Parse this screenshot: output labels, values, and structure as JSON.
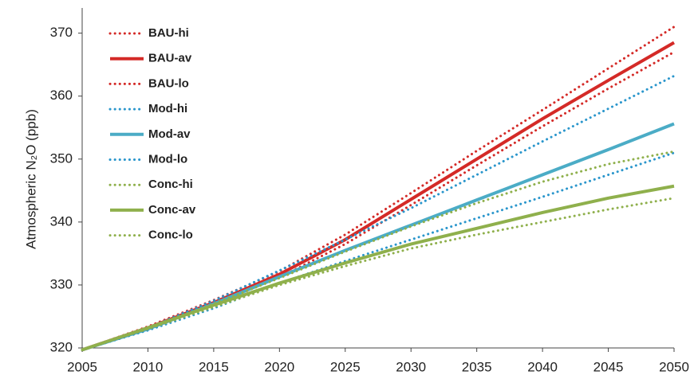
{
  "chart_data": {
    "type": "line",
    "y_label": "Atmospheric N₂O (ppb)",
    "x": [
      2005,
      2010,
      2015,
      2020,
      2025,
      2030,
      2035,
      2040,
      2045,
      2050
    ],
    "xlim": [
      2005,
      2050
    ],
    "xticks": [
      2005,
      2010,
      2015,
      2020,
      2025,
      2030,
      2035,
      2040,
      2045,
      2050
    ],
    "ylim": [
      320,
      374
    ],
    "yticks": [
      320,
      330,
      340,
      350,
      360,
      370
    ],
    "grid": false,
    "legend": "upper left",
    "series": [
      {
        "name": "BAU-hi",
        "color": "#d42a27",
        "style": "dotted",
        "values": [
          319.7,
          323.4,
          327.6,
          332.2,
          338.0,
          344.6,
          351.3,
          357.8,
          364.4,
          371.0
        ]
      },
      {
        "name": "BAU-av",
        "color": "#d42a27",
        "style": "solid",
        "values": [
          319.7,
          323.2,
          327.2,
          331.7,
          337.2,
          343.6,
          350.0,
          356.4,
          362.5,
          368.5
        ]
      },
      {
        "name": "BAU-lo",
        "color": "#d42a27",
        "style": "dotted",
        "values": [
          319.7,
          323.0,
          326.9,
          331.2,
          336.5,
          342.7,
          349.0,
          355.2,
          361.2,
          367.0
        ]
      },
      {
        "name": "Mod-hi",
        "color": "#2a96cc",
        "style": "dotted",
        "values": [
          319.7,
          323.2,
          327.5,
          332.3,
          337.2,
          342.2,
          347.5,
          352.8,
          358.0,
          363.2
        ]
      },
      {
        "name": "Mod-av",
        "color": "#4bacc6",
        "style": "solid",
        "values": [
          319.7,
          323.0,
          327.0,
          331.3,
          335.5,
          339.5,
          343.5,
          347.5,
          351.5,
          355.6
        ]
      },
      {
        "name": "Mod-lo",
        "color": "#2a96cc",
        "style": "dotted",
        "values": [
          319.7,
          322.8,
          326.3,
          330.3,
          333.8,
          337.2,
          340.6,
          344.0,
          347.5,
          351.0
        ]
      },
      {
        "name": "Conc-hi",
        "color": "#8fb04c",
        "style": "dotted",
        "values": [
          319.7,
          323.1,
          327.0,
          331.1,
          335.3,
          339.3,
          343.0,
          346.4,
          349.2,
          351.2
        ]
      },
      {
        "name": "Conc-av",
        "color": "#8fb04c",
        "style": "solid",
        "values": [
          319.7,
          323.2,
          326.8,
          330.3,
          333.5,
          336.5,
          339.0,
          341.5,
          343.8,
          345.7
        ]
      },
      {
        "name": "Conc-lo",
        "color": "#8fb04c",
        "style": "dotted",
        "values": [
          319.7,
          323.0,
          326.5,
          330.0,
          333.0,
          335.8,
          338.0,
          340.0,
          342.0,
          343.8
        ]
      }
    ]
  }
}
